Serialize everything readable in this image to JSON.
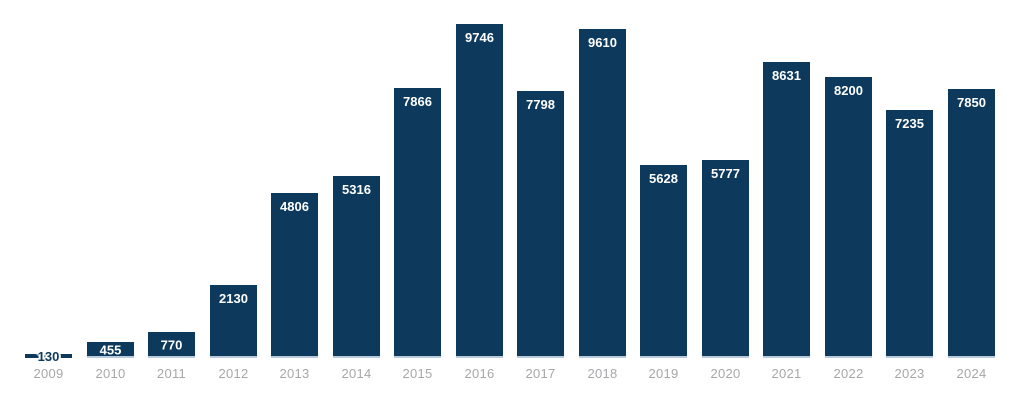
{
  "chart_data": {
    "type": "bar",
    "title": "",
    "xlabel": "",
    "ylabel": "",
    "categories": [
      "2009",
      "2010",
      "2011",
      "2012",
      "2013",
      "2014",
      "2015",
      "2016",
      "2017",
      "2018",
      "2019",
      "2020",
      "2021",
      "2022",
      "2023",
      "2024"
    ],
    "values": [
      130,
      455,
      770,
      2130,
      4806,
      5316,
      7866,
      9746,
      7798,
      9610,
      5628,
      5777,
      8631,
      8200,
      7235,
      7850
    ],
    "ylim": [
      0,
      9746
    ],
    "grid": false,
    "legend": "none",
    "bar_value_labels": true,
    "colors": {
      "bar": "#0d3a5c",
      "bar_value_label": "#ffffff",
      "tiny_bar_label_text": "#0d3a5c",
      "tiny_bar_label_halo": "#ffffff",
      "x_tick_label": "#a7a7aa",
      "bar_baseline_edge": "#b9cbdb",
      "background": "#ffffff"
    }
  }
}
